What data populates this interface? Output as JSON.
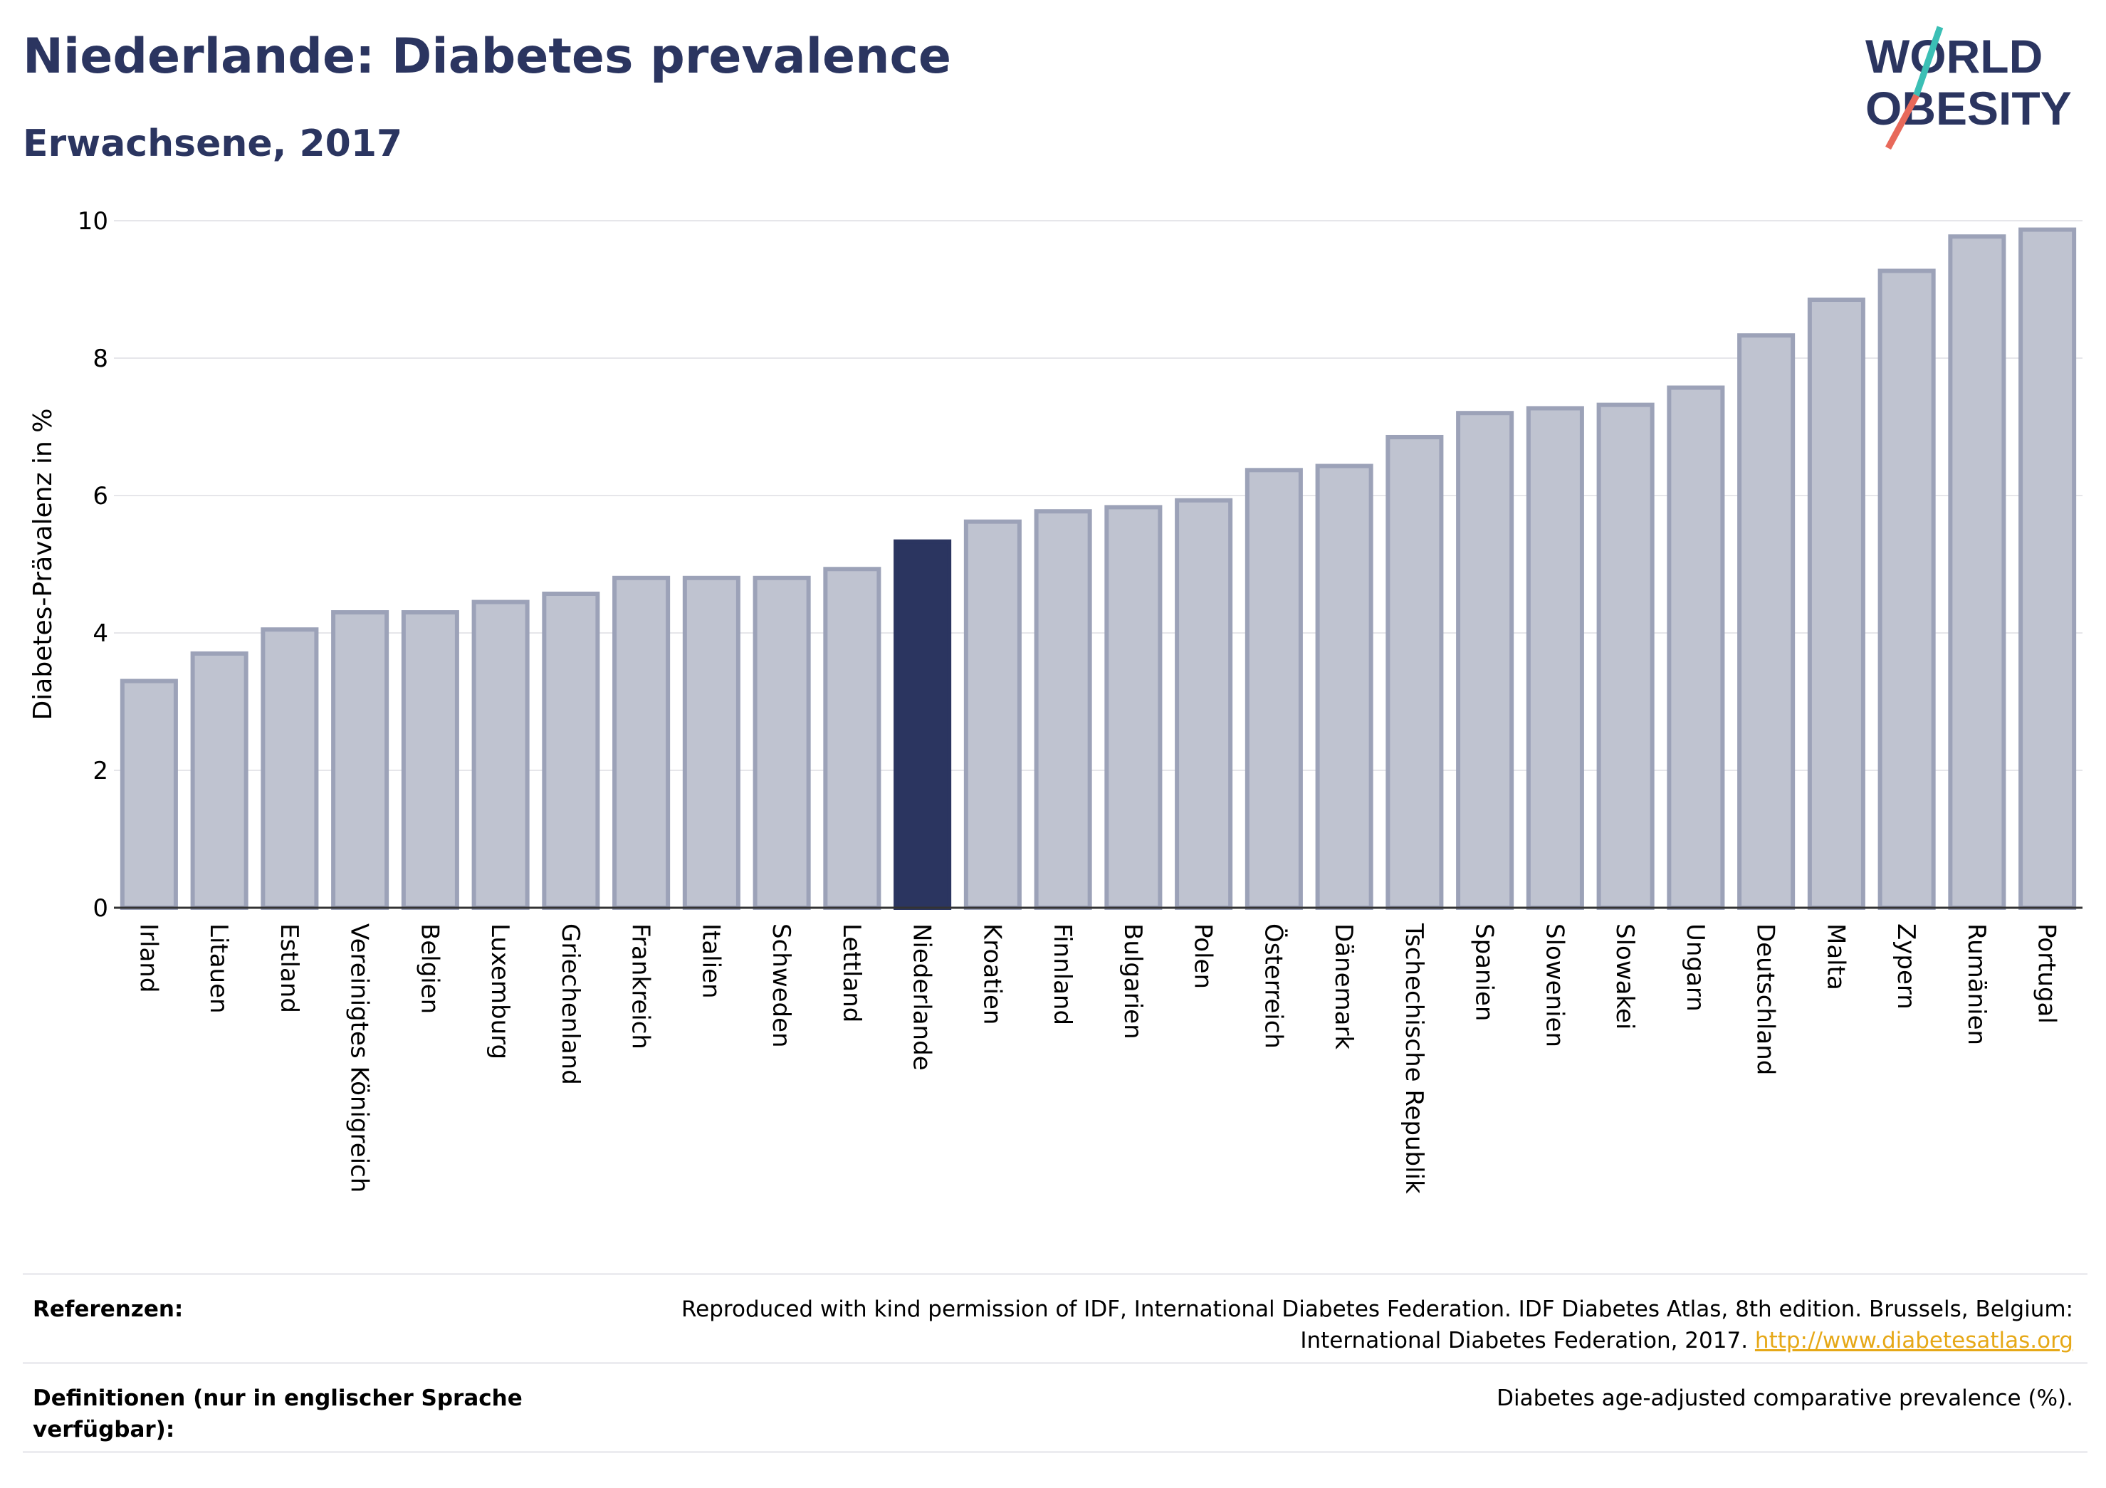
{
  "header": {
    "title": "Niederlande: Diabetes prevalence",
    "subtitle": "Erwachsene, 2017"
  },
  "logo": {
    "line1": "WORLD",
    "line2": "OBESITY",
    "colors": {
      "text": "#2b3560",
      "slash_teal": "#3bbfb5",
      "slash_coral": "#e8695a"
    }
  },
  "chart_data": {
    "type": "bar",
    "title": "",
    "xlabel": "",
    "ylabel": "Diabetes-Prävalenz in %",
    "ylim": [
      0,
      10
    ],
    "yticks": [
      0,
      2,
      4,
      6,
      8,
      10
    ],
    "grid": true,
    "highlight_category": "Niederlande",
    "colors": {
      "bar": "#bfc3d0",
      "bar_edge": "#9ca2b8",
      "highlight": "#2b3560",
      "grid": "#e6e6ea",
      "axis": "#333333"
    },
    "categories": [
      "Irland",
      "Litauen",
      "Estland",
      "Vereinigtes Königreich",
      "Belgien",
      "Luxemburg",
      "Griechenland",
      "Frankreich",
      "Italien",
      "Schweden",
      "Lettland",
      "Niederlande",
      "Kroatien",
      "Finnland",
      "Bulgarien",
      "Polen",
      "Österreich",
      "Dänemark",
      "Tschechische Republik",
      "Spanien",
      "Slowenien",
      "Slowakei",
      "Ungarn",
      "Deutschland",
      "Malta",
      "Zypern",
      "Rumänien",
      "Portugal"
    ],
    "values": [
      3.3,
      3.7,
      4.05,
      4.3,
      4.3,
      4.45,
      4.57,
      4.8,
      4.8,
      4.8,
      4.93,
      5.33,
      5.62,
      5.77,
      5.83,
      5.93,
      6.37,
      6.43,
      6.85,
      7.2,
      7.27,
      7.32,
      7.57,
      8.33,
      8.85,
      9.27,
      9.77,
      9.87
    ]
  },
  "references": {
    "label": "Referenzen:",
    "text_line1": "Reproduced with kind permission of IDF, International Diabetes Federation. IDF Diabetes Atlas, 8th edition. Brussels, Belgium:",
    "text_line2": "International Diabetes Federation, 2017.",
    "link": "http://www.diabetesatlas.org"
  },
  "definitions": {
    "label_line1": "Definitionen (nur in englischer Sprache",
    "label_line2": "verfügbar):",
    "text": "Diabetes age-adjusted comparative prevalence (%)."
  }
}
